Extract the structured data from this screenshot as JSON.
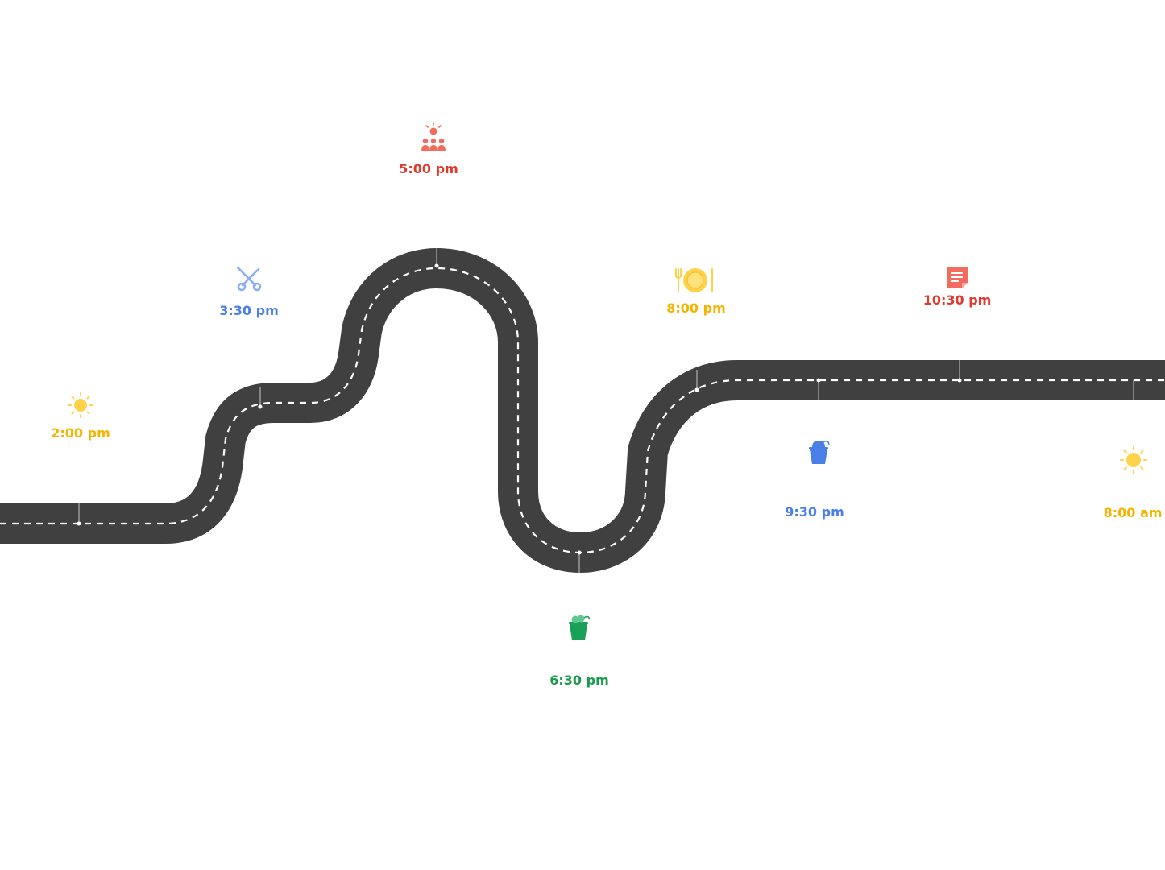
{
  "colors": {
    "road": "#404040",
    "lane": "#ffffff",
    "connector": "#9a9a9a",
    "yellow": "#F4B400",
    "blue": "#4A7FE8",
    "red": "#E03A2E",
    "red_icon": "#F26B5E",
    "green": "#1B9A4E"
  },
  "stops": [
    {
      "time": "2:00 pm",
      "icon": "sun-icon",
      "color": "yellow",
      "side": "above"
    },
    {
      "time": "3:30 pm",
      "icon": "tools-icon",
      "color": "blue",
      "side": "above"
    },
    {
      "time": "5:00 pm",
      "icon": "team-icon",
      "color": "red",
      "side": "above"
    },
    {
      "time": "6:30 pm",
      "icon": "snack-cup-icon",
      "color": "green",
      "side": "below"
    },
    {
      "time": "8:00 pm",
      "icon": "dinner-icon",
      "color": "yellow",
      "side": "above"
    },
    {
      "time": "9:30 pm",
      "icon": "snack-cup-icon",
      "color": "blue",
      "side": "below"
    },
    {
      "time": "10:30 pm",
      "icon": "notes-icon",
      "color": "red",
      "side": "above"
    },
    {
      "time": "8:00 am",
      "icon": "sun-icon",
      "color": "yellow",
      "side": "below"
    }
  ]
}
